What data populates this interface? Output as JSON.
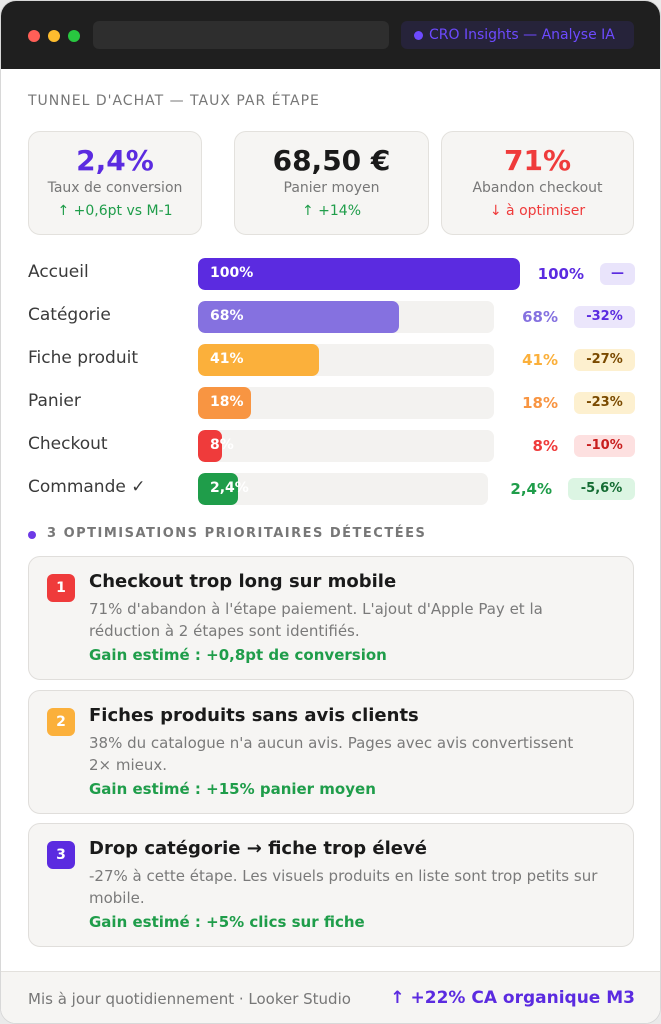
{
  "app": {
    "badge": "CRO Insights — Analyse IA"
  },
  "section_title": "TUNNEL D'ACHAT — TAUX PAR ÉTAPE",
  "kpis": [
    {
      "value": "2,4%",
      "label": "Taux de conversion",
      "delta": "↑ +0,6pt vs M-1",
      "value_color": "#5b2be0",
      "delta_color": "#1f9d4a"
    },
    {
      "value": "68,50 €",
      "label": "Panier moyen",
      "delta": "↑ +14%",
      "value_color": "#1a1a1a",
      "delta_color": "#1f9d4a"
    },
    {
      "value": "71%",
      "label": "Abandon checkout",
      "delta": "↓ à optimiser",
      "value_color": "#ef3b3b",
      "delta_color": "#ef3b3b"
    }
  ],
  "funnel": [
    {
      "label": "Accueil",
      "bar_text": "100%",
      "value": 100,
      "pct": "100%",
      "chip": "—",
      "color": "#5b2be0",
      "chip_bg": "#e9e4fb",
      "chip_color": "#5b2be0"
    },
    {
      "label": "Catégorie",
      "bar_text": "68%",
      "value": 68,
      "pct": "68%",
      "chip": "-32%",
      "color": "#8571e0",
      "chip_bg": "#ebe6fb",
      "chip_color": "#5b2be0"
    },
    {
      "label": "Fiche produit",
      "bar_text": "41%",
      "value": 41,
      "pct": "41%",
      "chip": "-27%",
      "color": "#fbb03b",
      "chip_bg": "#fdf0cf",
      "chip_color": "#7a4a00"
    },
    {
      "label": "Panier",
      "bar_text": "18%",
      "value": 18,
      "pct": "18%",
      "chip": "-23%",
      "color": "#f89542",
      "chip_bg": "#fdf0cf",
      "chip_color": "#7a4a00"
    },
    {
      "label": "Checkout",
      "bar_text": "8%",
      "value": 8,
      "pct": "8%",
      "chip": "-10%",
      "color": "#ef3b3b",
      "chip_bg": "#fde0e0",
      "chip_color": "#c81e1e"
    },
    {
      "label": "Commande ✓",
      "bar_text": "2,4%",
      "value": 2.4,
      "pct": "2,4%",
      "chip": "-5,6%",
      "color": "#1f9d4a",
      "chip_bg": "#dcf5e3",
      "chip_color": "#146c33"
    }
  ],
  "optimisations": {
    "header": "3 OPTIMISATIONS PRIORITAIRES DÉTECTÉES",
    "items": [
      {
        "num": "1",
        "title": "Checkout trop long sur mobile",
        "desc": "71% d'abandon à l'étape paiement. L'ajout d'Apple Pay et la réduction à 2 étapes sont identifiés.",
        "gain": "Gain estimé : +0,8pt de conversion",
        "color": "#ef3b3b"
      },
      {
        "num": "2",
        "title": "Fiches produits sans avis clients",
        "desc": "38% du catalogue n'a aucun avis. Pages avec avis convertissent 2× mieux.",
        "gain": "Gain estimé : +15% panier moyen",
        "color": "#fbb03b"
      },
      {
        "num": "3",
        "title": "Drop catégorie → fiche trop élevé",
        "desc": "-27% à cette étape. Les visuels produits en liste sont trop petits sur mobile.",
        "gain": "Gain estimé : +5% clics sur fiche",
        "color": "#5b2be0"
      }
    ]
  },
  "footer": {
    "text": "Mis à jour quotidiennement · Looker Studio",
    "highlight": "↑ +22% CA organique M3"
  }
}
